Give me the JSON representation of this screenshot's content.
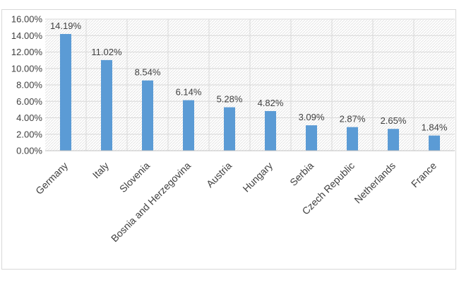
{
  "chart_data": {
    "type": "bar",
    "categories": [
      "Germany",
      "Italy",
      "Slovenia",
      "Bosnia and Herzegovina",
      "Austria",
      "Hungary",
      "Serbia",
      "Czech Republic",
      "Netherlands",
      "France"
    ],
    "values": [
      14.19,
      11.02,
      8.54,
      6.14,
      5.28,
      4.82,
      3.09,
      2.87,
      2.65,
      1.84
    ],
    "data_labels": [
      "14.19%",
      "11.02%",
      "8.54%",
      "6.14%",
      "5.28%",
      "4.82%",
      "3.09%",
      "2.87%",
      "2.65%",
      "1.84%"
    ],
    "y_ticks": [
      "0.00%",
      "2.00%",
      "4.00%",
      "6.00%",
      "8.00%",
      "10.00%",
      "12.00%",
      "14.00%",
      "16.00%"
    ],
    "ylim": [
      0,
      16
    ],
    "title": "",
    "xlabel": "",
    "ylabel": "",
    "grid": true,
    "bar_color": "#5b9bd5",
    "grid_color": "#d9d9d9",
    "plot_background": "#f2f2f2"
  }
}
